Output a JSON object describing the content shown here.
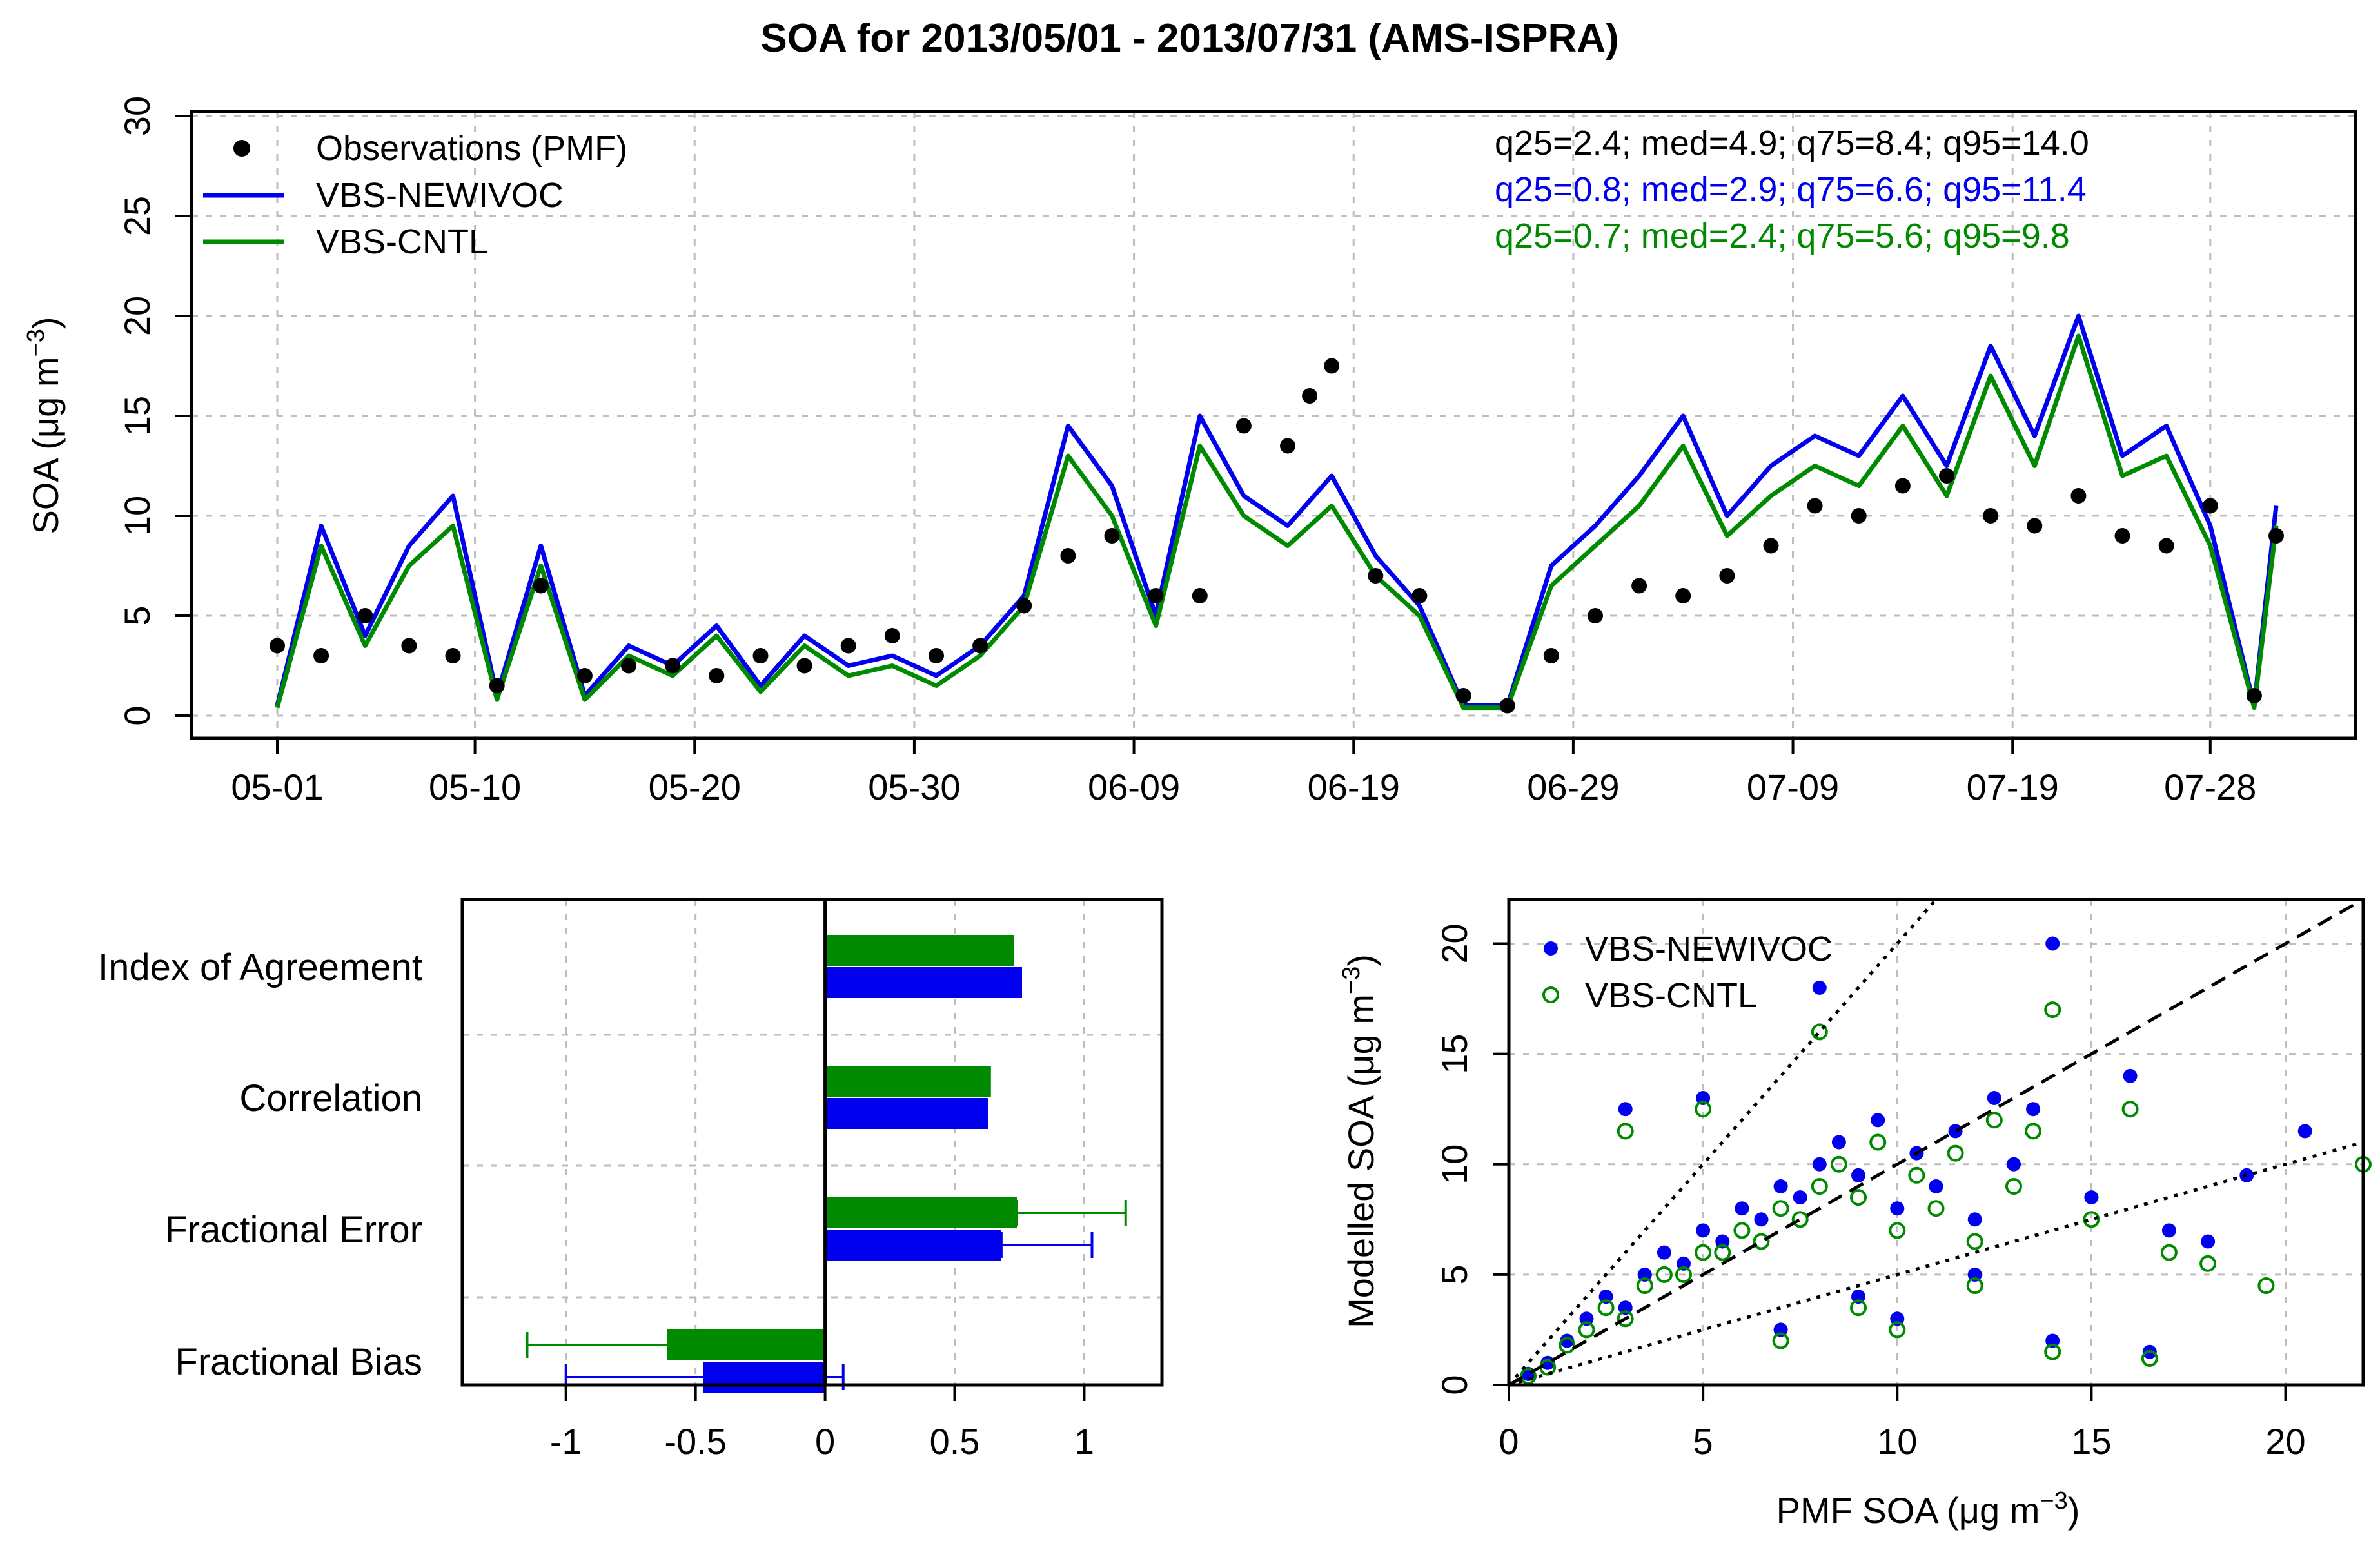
{
  "colors": {
    "obs": "#000000",
    "newivoc": "#0000ee",
    "cntl": "#008a00",
    "grid": "#bdbdbd"
  },
  "title": "SOA for 2013/05/01 - 2013/07/31 (AMS-ISPRA)",
  "chart_data": [
    {
      "type": "line",
      "title": "SOA for 2013/05/01 - 2013/07/31 (AMS-ISPRA)",
      "xlabel": "",
      "ylabel_main": "SOA (μg m",
      "ylabel_sup": "−3",
      "ylabel_close": ")",
      "x_start": "2013-05-01",
      "x_end": "2013-07-31",
      "x_ticks": [
        "05-01",
        "05-10",
        "05-20",
        "05-30",
        "06-09",
        "06-19",
        "06-29",
        "07-09",
        "07-19",
        "07-28"
      ],
      "y_ticks": [
        "0",
        "5",
        "10",
        "15",
        "20",
        "25",
        "30"
      ],
      "ylim": [
        0,
        30
      ],
      "grid": true,
      "legend_position": "top-left",
      "series": [
        {
          "name": "Observations (PMF)",
          "kind": "points",
          "color": "#000000",
          "x": [
            "05-01",
            "05-03",
            "05-05",
            "05-07",
            "05-09",
            "05-11",
            "05-13",
            "05-15",
            "05-17",
            "05-19",
            "05-21",
            "05-23",
            "05-25",
            "05-27",
            "05-29",
            "05-31",
            "06-02",
            "06-04",
            "06-06",
            "06-08",
            "06-10",
            "06-12",
            "06-14",
            "06-16",
            "06-17",
            "06-18",
            "06-20",
            "06-22",
            "06-24",
            "06-26",
            "06-28",
            "06-30",
            "07-02",
            "07-04",
            "07-06",
            "07-08",
            "07-10",
            "07-12",
            "07-14",
            "07-16",
            "07-18",
            "07-20",
            "07-22",
            "07-24",
            "07-26",
            "07-28",
            "07-30",
            "07-31"
          ],
          "y": [
            3.5,
            3.0,
            5.0,
            3.5,
            3.0,
            1.5,
            6.5,
            2.0,
            2.5,
            2.5,
            2.0,
            3.0,
            2.5,
            3.5,
            4.0,
            3.0,
            3.5,
            5.5,
            8.0,
            9.0,
            6.0,
            6.0,
            14.5,
            13.5,
            16.0,
            17.5,
            7.0,
            6.0,
            1.0,
            0.5,
            3.0,
            5.0,
            6.5,
            6.0,
            7.0,
            8.5,
            10.5,
            10.0,
            11.5,
            12.0,
            10.0,
            9.5,
            11.0,
            9.0,
            8.5,
            10.5,
            1.0,
            9.0
          ]
        },
        {
          "name": "VBS-NEWIVOC",
          "kind": "line",
          "color": "#0000ee",
          "x": [
            "05-01",
            "05-03",
            "05-05",
            "05-07",
            "05-09",
            "05-11",
            "05-13",
            "05-15",
            "05-17",
            "05-19",
            "05-21",
            "05-23",
            "05-25",
            "05-27",
            "05-29",
            "05-31",
            "06-02",
            "06-04",
            "06-06",
            "06-08",
            "06-10",
            "06-12",
            "06-14",
            "06-16",
            "06-18",
            "06-20",
            "06-22",
            "06-24",
            "06-26",
            "06-28",
            "06-30",
            "07-02",
            "07-04",
            "07-06",
            "07-08",
            "07-10",
            "07-12",
            "07-14",
            "07-16",
            "07-18",
            "07-20",
            "07-22",
            "07-24",
            "07-26",
            "07-28",
            "07-30",
            "07-31"
          ],
          "y": [
            0.5,
            9.5,
            4.0,
            8.5,
            11.0,
            1.0,
            8.5,
            1.0,
            3.5,
            2.5,
            4.5,
            1.5,
            4.0,
            2.5,
            3.0,
            2.0,
            3.5,
            6.0,
            14.5,
            11.5,
            5.0,
            15.0,
            11.0,
            9.5,
            12.0,
            8.0,
            5.5,
            0.5,
            0.5,
            7.5,
            9.5,
            12.0,
            15.0,
            10.0,
            12.5,
            14.0,
            13.0,
            16.0,
            12.5,
            18.5,
            14.0,
            20.0,
            13.0,
            14.5,
            9.5,
            0.5,
            10.5
          ]
        },
        {
          "name": "VBS-CNTL",
          "kind": "line",
          "color": "#008a00",
          "x": [
            "05-01",
            "05-03",
            "05-05",
            "05-07",
            "05-09",
            "05-11",
            "05-13",
            "05-15",
            "05-17",
            "05-19",
            "05-21",
            "05-23",
            "05-25",
            "05-27",
            "05-29",
            "05-31",
            "06-02",
            "06-04",
            "06-06",
            "06-08",
            "06-10",
            "06-12",
            "06-14",
            "06-16",
            "06-18",
            "06-20",
            "06-22",
            "06-24",
            "06-26",
            "06-28",
            "06-30",
            "07-02",
            "07-04",
            "07-06",
            "07-08",
            "07-10",
            "07-12",
            "07-14",
            "07-16",
            "07-18",
            "07-20",
            "07-22",
            "07-24",
            "07-26",
            "07-28",
            "07-30",
            "07-31"
          ],
          "y": [
            0.4,
            8.5,
            3.5,
            7.5,
            9.5,
            0.8,
            7.5,
            0.8,
            3.0,
            2.0,
            4.0,
            1.2,
            3.5,
            2.0,
            2.5,
            1.5,
            3.0,
            5.5,
            13.0,
            10.0,
            4.5,
            13.5,
            10.0,
            8.5,
            10.5,
            7.0,
            5.0,
            0.4,
            0.4,
            6.5,
            8.5,
            10.5,
            13.5,
            9.0,
            11.0,
            12.5,
            11.5,
            14.5,
            11.0,
            17.0,
            12.5,
            19.0,
            12.0,
            13.0,
            8.5,
            0.4,
            9.5
          ]
        }
      ],
      "annotations": [
        {
          "text": "q25=2.4; med=4.9; q75=8.4; q95=14.0",
          "color": "#000000"
        },
        {
          "text": "q25=0.8; med=2.9; q75=6.6; q95=11.4",
          "color": "#0000ee"
        },
        {
          "text": "q25=0.7; med=2.4; q75=5.6; q95=9.8",
          "color": "#008a00"
        }
      ]
    },
    {
      "type": "bar",
      "orientation": "horizontal",
      "categories": [
        "Index of Agreement",
        "Correlation",
        "Fractional Error",
        "Fractional Bias"
      ],
      "x_ticks": [
        "-1",
        "-0.5",
        "0",
        "0.5",
        "1"
      ],
      "xlim": [
        -1.4,
        1.3
      ],
      "grid": true,
      "series": [
        {
          "name": "VBS-NEWIVOC",
          "color": "#0000ee",
          "values": [
            0.76,
            0.63,
            0.68,
            -0.47
          ],
          "err_low": [
            null,
            null,
            0.68,
            -1.0
          ],
          "err_high": [
            null,
            null,
            1.03,
            0.07
          ]
        },
        {
          "name": "VBS-CNTL",
          "color": "#008a00",
          "values": [
            0.73,
            0.64,
            0.74,
            -0.61
          ],
          "err_low": [
            null,
            null,
            0.74,
            -1.15
          ],
          "err_high": [
            null,
            null,
            1.16,
            0.0
          ]
        }
      ]
    },
    {
      "type": "scatter",
      "xlabel_main": "PMF SOA (μg m",
      "xlabel_sup": "−3",
      "xlabel_close": ")",
      "ylabel_main": "Modelled SOA (μg m",
      "ylabel_sup": "−3",
      "ylabel_close": ")",
      "x_ticks": [
        "0",
        "5",
        "10",
        "15",
        "20"
      ],
      "y_ticks": [
        "0",
        "5",
        "10",
        "15",
        "20"
      ],
      "xlim": [
        0,
        22
      ],
      "ylim": [
        0,
        22
      ],
      "grid": true,
      "legend_position": "top-left",
      "reference_lines": [
        {
          "slope": 1,
          "style": "dashed"
        },
        {
          "slope": 2,
          "style": "dotted"
        },
        {
          "slope": 0.5,
          "style": "dotted"
        }
      ],
      "series": [
        {
          "name": "VBS-NEWIVOC",
          "marker": "filled",
          "color": "#0000ee",
          "x": [
            0.5,
            1.0,
            1.5,
            2.0,
            2.5,
            3.0,
            3.5,
            4.0,
            4.5,
            5.0,
            5.5,
            6.0,
            6.5,
            7.0,
            7.5,
            8.0,
            8.5,
            9.0,
            9.5,
            10.0,
            10.5,
            11.0,
            11.5,
            12.0,
            12.5,
            13.0,
            13.5,
            14.0,
            15.0,
            16.0,
            17.0,
            18.0,
            19.0,
            20.5,
            8.0,
            10.0,
            12.0,
            14.0,
            16.5,
            5.0,
            7.0,
            3.0,
            9.0
          ],
          "y": [
            0.5,
            1.0,
            2.0,
            3.0,
            4.0,
            3.5,
            5.0,
            6.0,
            5.5,
            7.0,
            6.5,
            8.0,
            7.5,
            9.0,
            8.5,
            10.0,
            11.0,
            9.5,
            12.0,
            8.0,
            10.5,
            9.0,
            11.5,
            7.5,
            13.0,
            10.0,
            12.5,
            20.0,
            8.5,
            14.0,
            7.0,
            6.5,
            9.5,
            11.5,
            18.0,
            3.0,
            5.0,
            2.0,
            1.5,
            13.0,
            2.5,
            12.5,
            4.0
          ]
        },
        {
          "name": "VBS-CNTL",
          "marker": "open",
          "color": "#008a00",
          "x": [
            0.5,
            1.0,
            1.5,
            2.0,
            2.5,
            3.0,
            3.5,
            4.0,
            4.5,
            5.0,
            5.5,
            6.0,
            6.5,
            7.0,
            7.5,
            8.0,
            8.5,
            9.0,
            9.5,
            10.0,
            10.5,
            11.0,
            11.5,
            12.0,
            12.5,
            13.0,
            13.5,
            14.0,
            15.0,
            16.0,
            17.0,
            18.0,
            19.5,
            22.0,
            8.0,
            10.0,
            12.0,
            14.0,
            16.5,
            5.0,
            7.0,
            3.0,
            9.0
          ],
          "y": [
            0.4,
            0.8,
            1.8,
            2.5,
            3.5,
            3.0,
            4.5,
            5.0,
            5.0,
            6.0,
            6.0,
            7.0,
            6.5,
            8.0,
            7.5,
            9.0,
            10.0,
            8.5,
            11.0,
            7.0,
            9.5,
            8.0,
            10.5,
            6.5,
            12.0,
            9.0,
            11.5,
            17.0,
            7.5,
            12.5,
            6.0,
            5.5,
            4.5,
            10.0,
            16.0,
            2.5,
            4.5,
            1.5,
            1.2,
            12.5,
            2.0,
            11.5,
            3.5
          ]
        }
      ]
    }
  ]
}
